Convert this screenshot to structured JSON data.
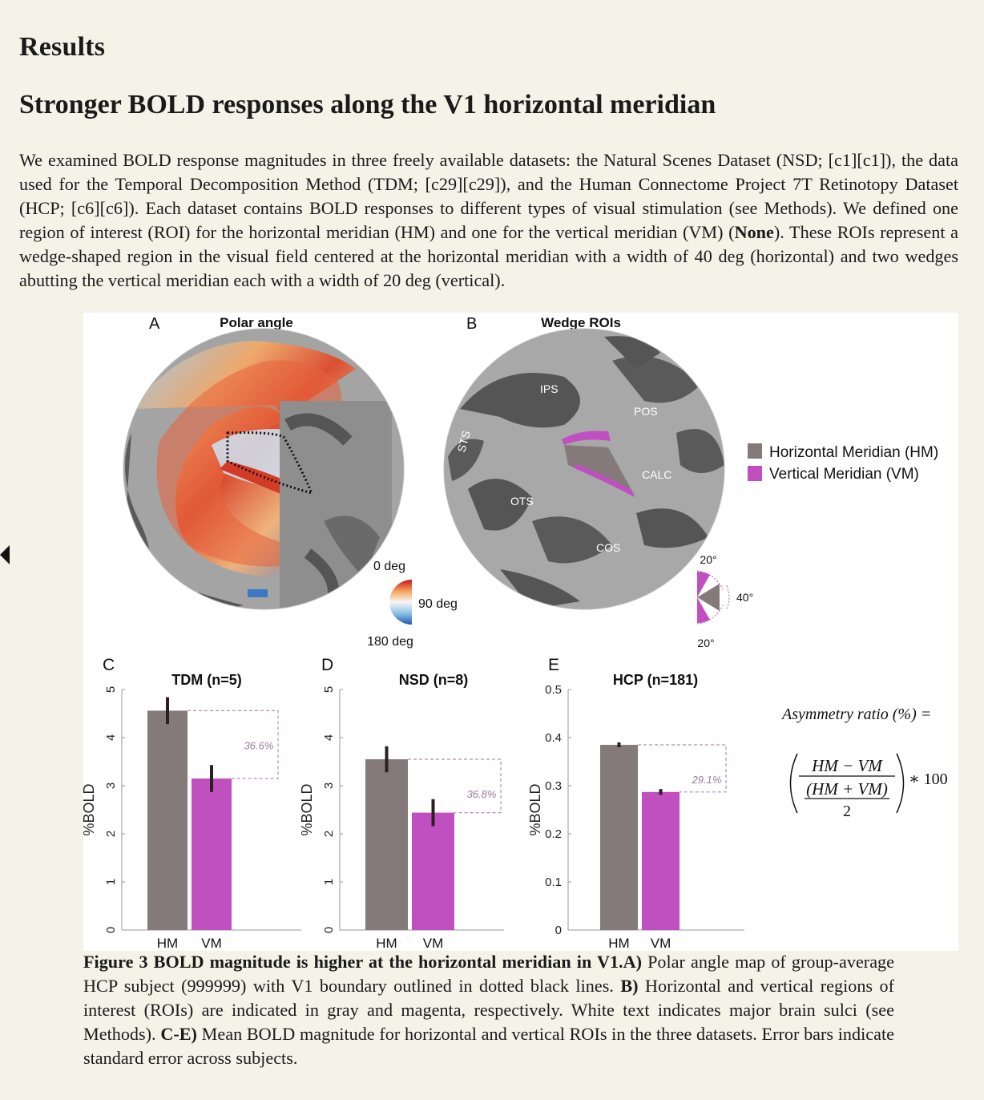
{
  "heading": "Results",
  "section_title": "Stronger BOLD responses along the V1 horizontal meridian",
  "paragraph": {
    "part1": "We examined BOLD response magnitudes in three freely available datasets: the Natural Scenes Dataset (NSD; [c1][c1]), the data used for the Temporal Decomposition Method (TDM; [c29][c29]), and the Human Connectome Project 7T Retinotopy Dataset (HCP; [c6][c6]). Each dataset contains BOLD responses to different types of visual stimulation (see Methods). We defined one region of interest (ROI) for the horizontal meridian (HM) and one for the vertical meridian (VM) (",
    "bold": "None",
    "part2": "). These ROIs represent a wedge-shaped region in the visual field centered at the horizontal meridian with a width of 40 deg (horizontal) and two wedges abutting the vertical meridian each with a width of 20 deg (vertical)."
  },
  "figure": {
    "panelA": {
      "letter": "A",
      "title": "Polar angle",
      "colorbar": {
        "top": "0 deg",
        "mid": "90 deg",
        "bottom": "180 deg"
      }
    },
    "panelB": {
      "letter": "B",
      "title": "Wedge ROIs",
      "sulci": [
        "IPS",
        "POS",
        "STS",
        "CALC",
        "OTS",
        "COS"
      ],
      "legend": [
        {
          "label": "Horizontal Meridian (HM)",
          "color": "#847a7a"
        },
        {
          "label": "Vertical Meridian (VM)",
          "color": "#c04fc0"
        }
      ],
      "wedge_labels": {
        "top": "20°",
        "side": "40°",
        "bottom": "20°"
      }
    },
    "formula": {
      "lhs": "Asymmetry ratio (%) =",
      "numerator": "HM − VM",
      "inner_numerator": "(HM + VM)",
      "inner_denominator": "2",
      "multiplier": "∗ 100"
    }
  },
  "chart_data": [
    {
      "panel": "C",
      "type": "bar",
      "title": "TDM (n=5)",
      "categories": [
        "HM",
        "VM"
      ],
      "values": [
        4.56,
        3.15
      ],
      "errors": [
        0.28,
        0.28
      ],
      "ylabel": "%BOLD",
      "ylim": [
        0,
        5
      ],
      "yticks": [
        "0",
        "1",
        "2",
        "3",
        "4",
        "5"
      ],
      "annotation": "36.6%",
      "colors": [
        "#847a7a",
        "#c04fc0"
      ]
    },
    {
      "panel": "D",
      "type": "bar",
      "title": "NSD (n=8)",
      "categories": [
        "HM",
        "VM"
      ],
      "values": [
        3.55,
        2.44
      ],
      "errors": [
        0.27,
        0.28
      ],
      "ylabel": "%BOLD",
      "ylim": [
        0,
        5
      ],
      "yticks": [
        "0",
        "1",
        "2",
        "3",
        "4",
        "5"
      ],
      "annotation": "36.8%",
      "colors": [
        "#847a7a",
        "#c04fc0"
      ]
    },
    {
      "panel": "E",
      "type": "bar",
      "title": "HCP (n=181)",
      "categories": [
        "HM",
        "VM"
      ],
      "values": [
        0.385,
        0.287
      ],
      "errors": [
        0.005,
        0.006
      ],
      "ylabel": "%BOLD",
      "ylim": [
        0,
        0.5
      ],
      "yticks": [
        "0",
        "0.1",
        "0.2",
        "0.3",
        "0.4",
        "0.5"
      ],
      "annotation": "29.1%",
      "colors": [
        "#847a7a",
        "#c04fc0"
      ]
    }
  ],
  "caption": {
    "label": "Figure 3 BOLD magnitude is higher at the horizontal meridian in V1.",
    "a_label": "A)",
    "a_text": " Polar angle map of group-average HCP subject (999999) with V1 boundary outlined in dotted black lines. ",
    "b_label": "B)",
    "b_text": " Horizontal and vertical regions of interest (ROIs) are indicated in gray and magenta, respectively. White text indicates major brain sulci (see Methods). ",
    "ce_label": "C-E)",
    "ce_text": " Mean BOLD magnitude for horizontal and vertical ROIs in the three datasets. Error bars indicate standard error across subjects."
  }
}
